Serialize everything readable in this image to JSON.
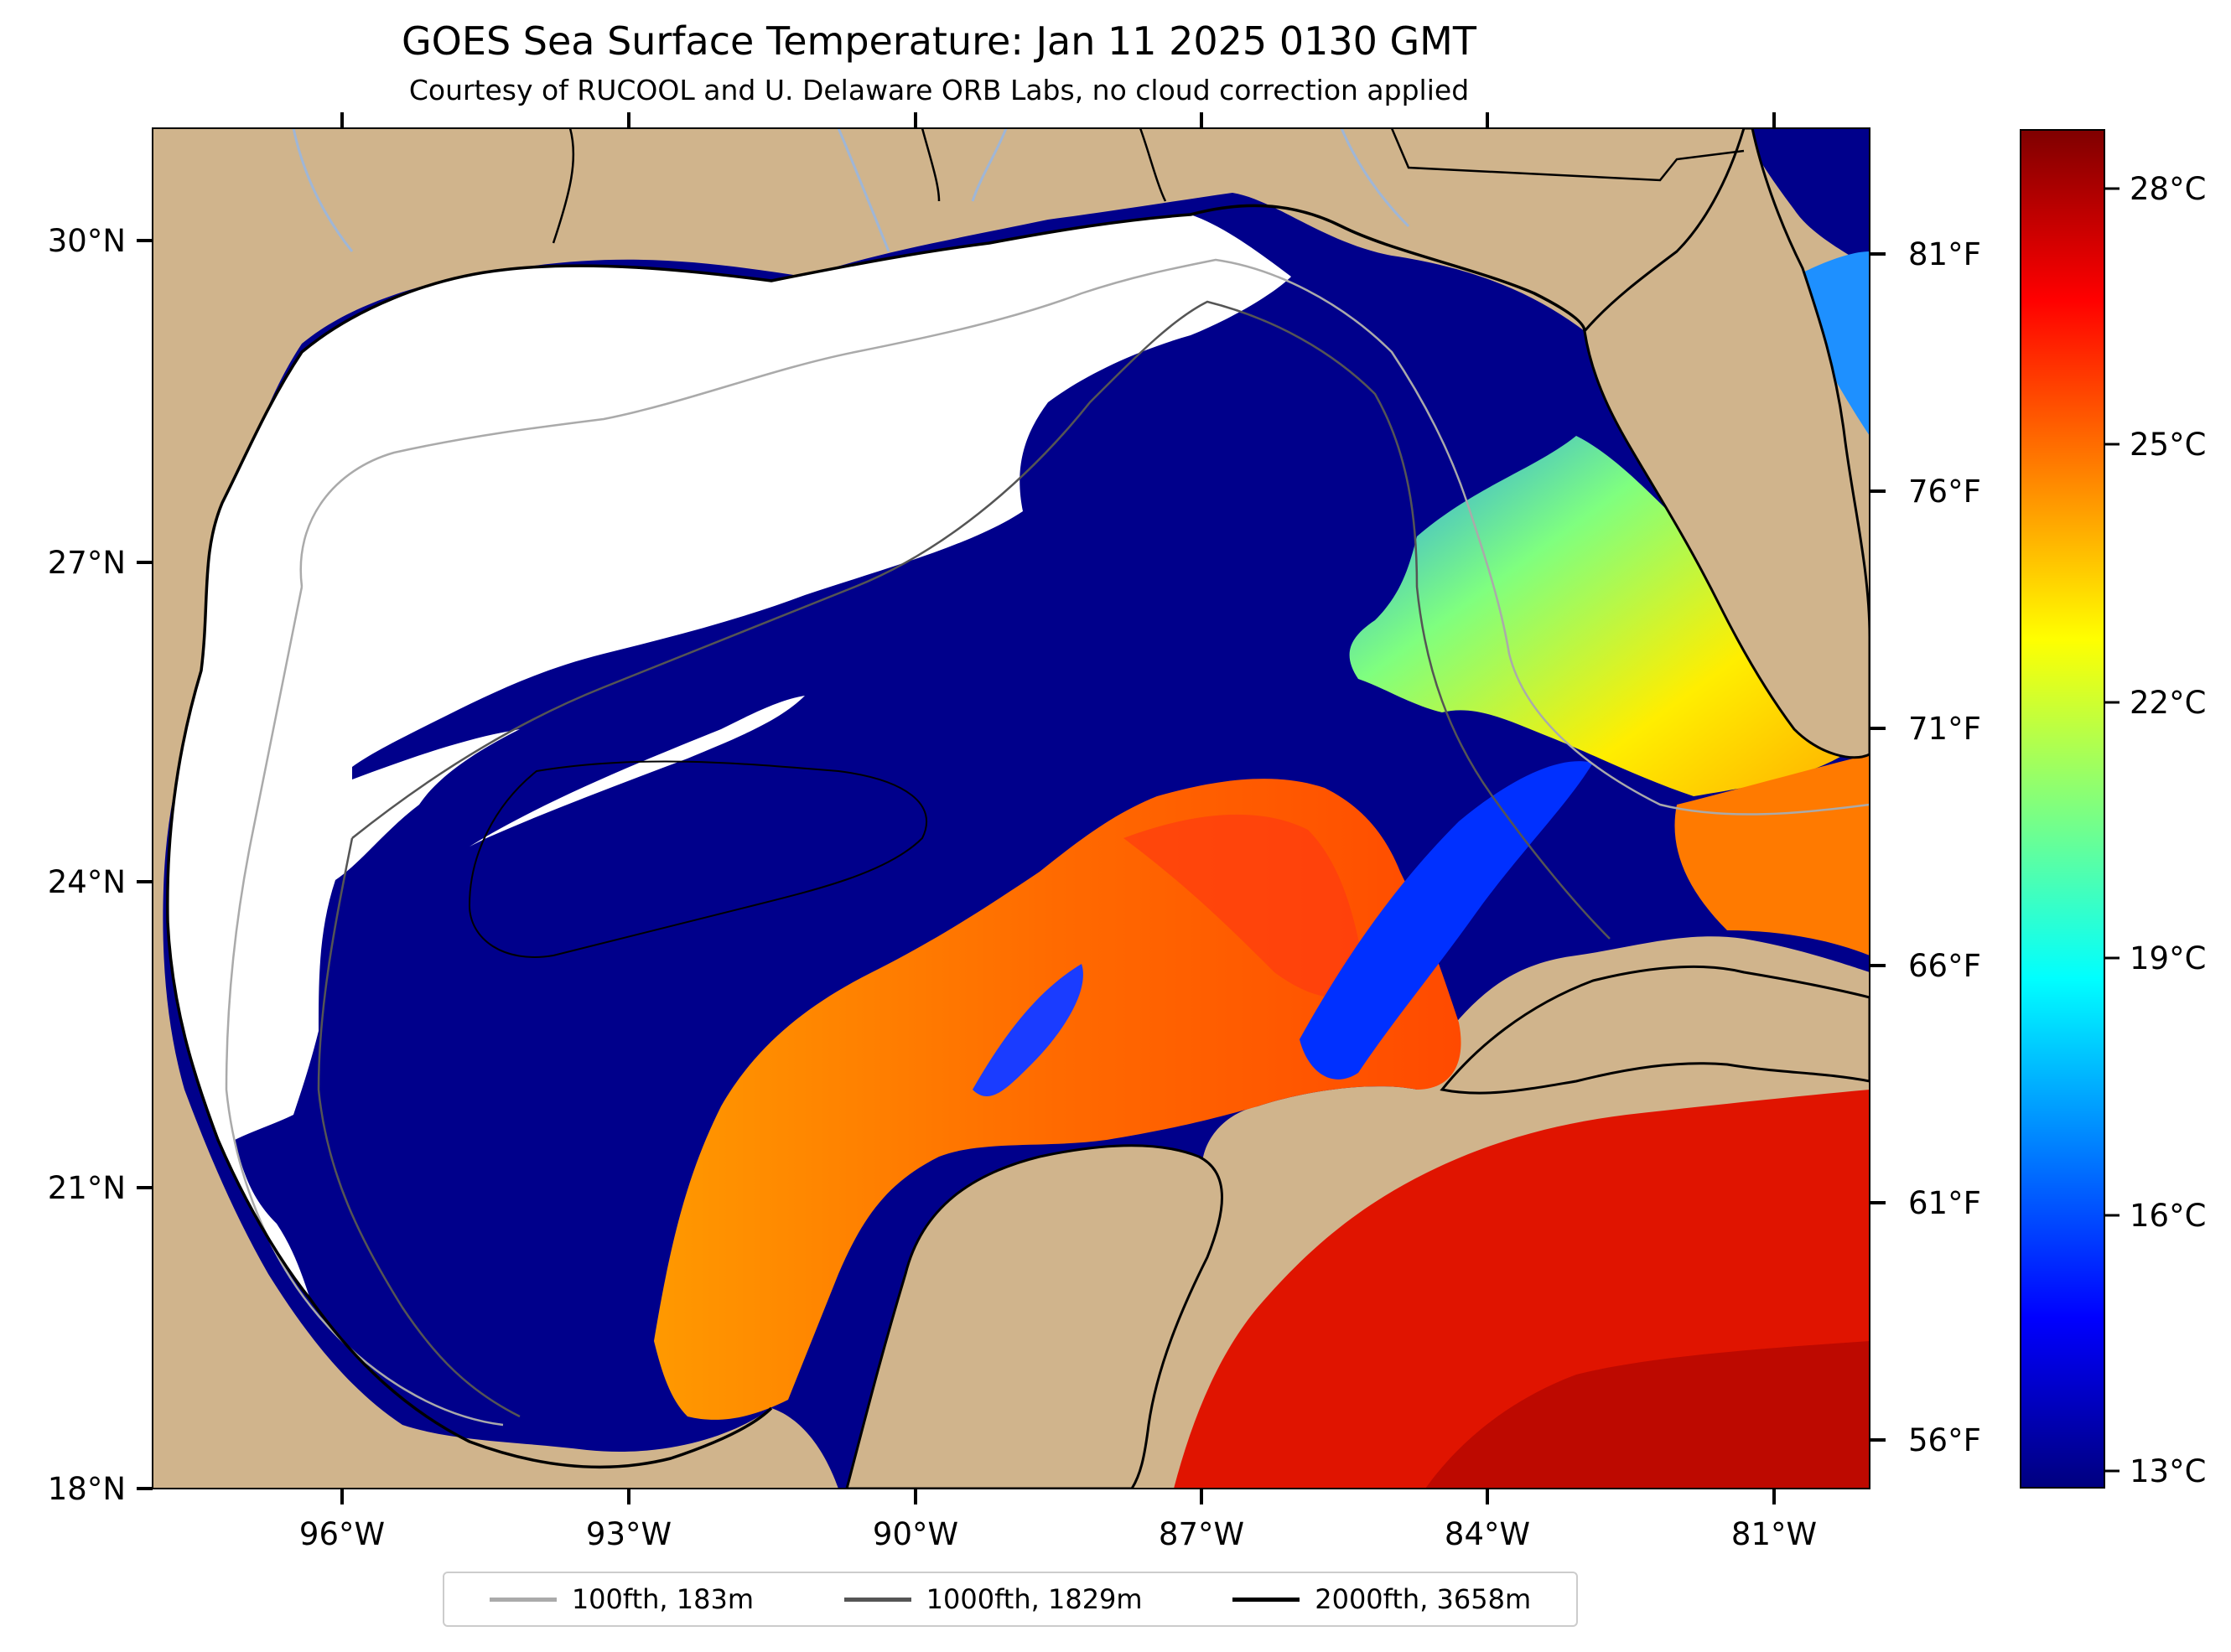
{
  "title": "GOES Sea Surface Temperature: Jan 11 2025 0130 GMT",
  "subtitle": "Courtesy of RUCOOL and U. Delaware ORB Labs, no cloud correction applied",
  "lat_labels": [
    "30°N",
    "27°N",
    "24°N",
    "21°N",
    "18°N"
  ],
  "lon_labels": [
    "96°W",
    "93°W",
    "90°W",
    "87°W",
    "84°W",
    "81°W"
  ],
  "fahrenheit_labels": [
    "81°F",
    "76°F",
    "71°F",
    "66°F",
    "61°F",
    "56°F"
  ],
  "colorbar": {
    "labels": [
      "28°C",
      "25°C",
      "22°C",
      "19°C",
      "16°C",
      "13°C"
    ],
    "colors": [
      "#00007f",
      "#0000ff",
      "#007fff",
      "#00ffff",
      "#7fff7f",
      "#ffff00",
      "#ff7f00",
      "#ff0000",
      "#7f0000"
    ]
  },
  "legend": [
    {
      "label": "100fth, 183m",
      "color": "#aaaaaa"
    },
    {
      "label": "1000fth, 1829m",
      "color": "#555555"
    },
    {
      "label": "2000fth, 3658m",
      "color": "#000000"
    }
  ],
  "colors": {
    "land": "#d0b48c",
    "cloud": "#ffffff",
    "cold_water": "#00008b",
    "river": "#9fb6d6"
  }
}
